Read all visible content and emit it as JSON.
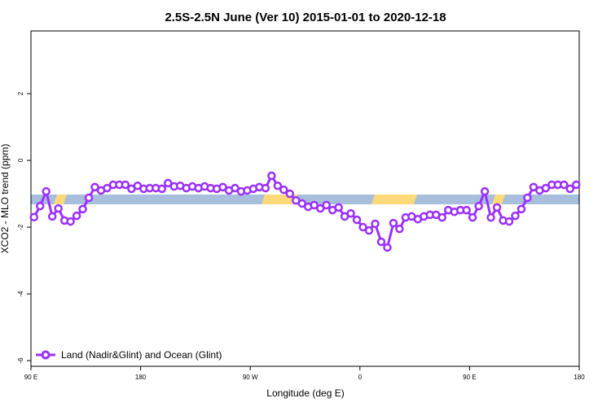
{
  "chart_data": {
    "type": "line",
    "title": "2.5S-2.5N June (Ver 10)   2015-01-01 to 2020-12-18",
    "x_label": "Longitude (deg E)",
    "y_label": "XCO2 - MLO trend (ppm)",
    "x": [
      92.5,
      97.5,
      102.5,
      107.5,
      112.5,
      117.5,
      122.5,
      127.5,
      132.5,
      137.5,
      142.5,
      147.5,
      152.5,
      157.5,
      162.5,
      167.5,
      172.5,
      177.5,
      182.5,
      187.5,
      192.5,
      197.5,
      202.5,
      207.5,
      212.5,
      217.5,
      222.5,
      227.5,
      232.5,
      237.5,
      242.5,
      247.5,
      252.5,
      257.5,
      262.5,
      267.5,
      272.5,
      277.5,
      282.5,
      287.5,
      292.5,
      297.5,
      302.5,
      307.5,
      312.5,
      317.5,
      322.5,
      327.5,
      332.5,
      337.5,
      342.5,
      347.5,
      352.5,
      357.5,
      362.5,
      367.5,
      372.5,
      377.5,
      382.5,
      387.5,
      392.5,
      397.5,
      402.5,
      407.5,
      412.5,
      417.5,
      422.5,
      427.5,
      432.5,
      437.5,
      442.5,
      447.5,
      452.5,
      457.5,
      462.5,
      467.5,
      472.5,
      477.5,
      482.5,
      487.5,
      492.5,
      497.5,
      502.5,
      507.5,
      512.5,
      517.5,
      522.5,
      527.5,
      532.5,
      537.5
    ],
    "series": [
      {
        "name": "Land (Nadir&Glint) and Ocean (Glint)",
        "color": "#9b30ff",
        "values": [
          -1.7,
          -1.37,
          -0.93,
          -1.68,
          -1.44,
          -1.8,
          -1.83,
          -1.66,
          -1.46,
          -1.12,
          -0.8,
          -0.9,
          -0.83,
          -0.73,
          -0.73,
          -0.73,
          -0.85,
          -0.76,
          -0.85,
          -0.83,
          -0.83,
          -0.85,
          -0.68,
          -0.78,
          -0.76,
          -0.83,
          -0.78,
          -0.83,
          -0.78,
          -0.83,
          -0.85,
          -0.8,
          -0.9,
          -0.83,
          -0.93,
          -0.9,
          -0.85,
          -0.8,
          -0.83,
          -0.46,
          -0.76,
          -0.88,
          -1.0,
          -1.2,
          -1.29,
          -1.39,
          -1.34,
          -1.44,
          -1.34,
          -1.49,
          -1.41,
          -1.68,
          -1.59,
          -1.78,
          -2.0,
          -2.1,
          -1.9,
          -2.44,
          -2.61,
          -1.88,
          -2.05,
          -1.71,
          -1.68,
          -1.76,
          -1.68,
          -1.63,
          -1.63,
          -1.71,
          -1.49,
          -1.54,
          -1.49,
          -1.49,
          -1.71,
          -1.37,
          -0.93,
          -1.71,
          -1.41,
          -1.8,
          -1.83,
          -1.66,
          -1.46,
          -1.12,
          -0.8,
          -0.9,
          -0.83,
          -0.73,
          -0.73,
          -0.73,
          -0.85,
          -0.73
        ]
      }
    ],
    "xlim": [
      90,
      540
    ],
    "xticks": [
      {
        "value": 90,
        "label": "90 E"
      },
      180,
      {
        "value": 270,
        "label": "90 W"
      },
      {
        "value": 360,
        "label": "0"
      },
      {
        "value": 450,
        "label": "90 E"
      },
      {
        "value": 540,
        "label": "180"
      }
    ],
    "ylim": [
      -6.17,
      3.88
    ],
    "yticks": [
      -6,
      -4,
      -2,
      0,
      2
    ],
    "legend": "bottom-left"
  }
}
